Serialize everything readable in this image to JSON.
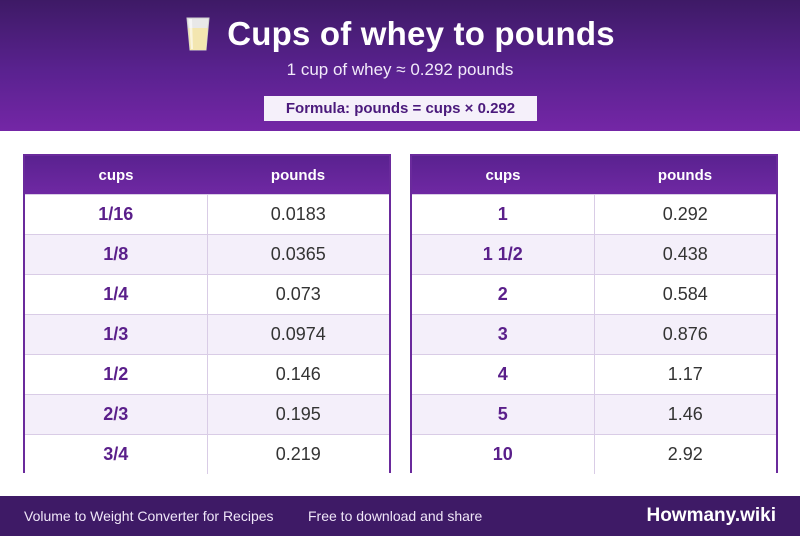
{
  "header": {
    "title": "Cups of whey to pounds",
    "title_icon": "milk-glass-icon",
    "subtitle": "1 cup of whey ≈ 0.292 pounds",
    "formula": "Formula: pounds = cups × 0.292"
  },
  "tables": [
    {
      "col_cups": "cups",
      "col_value": "pounds",
      "rows": [
        {
          "cups": "1/16",
          "value": "0.0183"
        },
        {
          "cups": "1/8",
          "value": "0.0365"
        },
        {
          "cups": "1/4",
          "value": "0.073"
        },
        {
          "cups": "1/3",
          "value": "0.0974"
        },
        {
          "cups": "1/2",
          "value": "0.146"
        },
        {
          "cups": "2/3",
          "value": "0.195"
        },
        {
          "cups": "3/4",
          "value": "0.219"
        }
      ]
    },
    {
      "col_cups": "cups",
      "col_value": "pounds",
      "rows": [
        {
          "cups": "1",
          "value": "0.292"
        },
        {
          "cups": "1 1/2",
          "value": "0.438"
        },
        {
          "cups": "2",
          "value": "0.584"
        },
        {
          "cups": "3",
          "value": "0.876"
        },
        {
          "cups": "4",
          "value": "1.17"
        },
        {
          "cups": "5",
          "value": "1.46"
        },
        {
          "cups": "10",
          "value": "2.92"
        }
      ]
    }
  ],
  "footer": {
    "left": "Volume to Weight Converter for Recipes",
    "middle": "Free to download and share",
    "brand": "Howmany.wiki"
  },
  "colors": {
    "header_dark": "#3e1a66",
    "header_light": "#7426a6",
    "accent": "#5a1f8a",
    "row_alt": "#f4effa"
  }
}
